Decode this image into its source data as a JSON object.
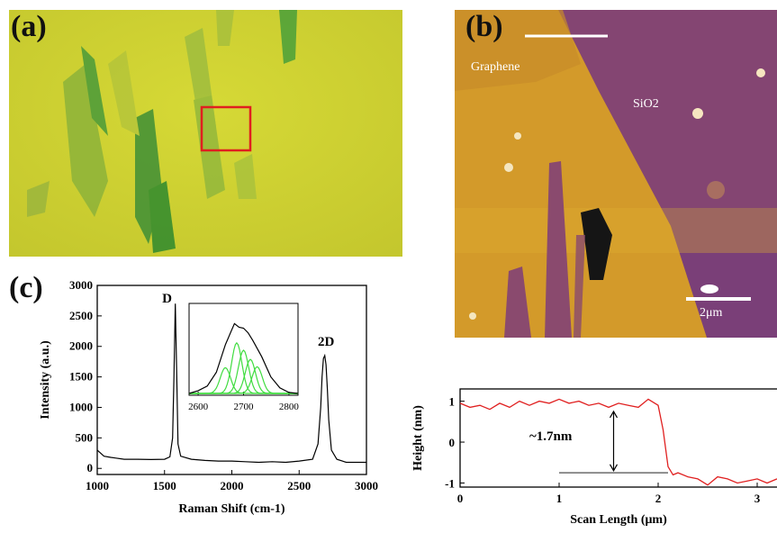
{
  "panel_a": {
    "label": "(a)"
  },
  "panel_b": {
    "label": "(b)",
    "region_labels": [
      "Graphene",
      "SiO2"
    ],
    "scale_bar": "2μm"
  },
  "panel_c": {
    "label": "(c)"
  },
  "chart_data": [
    {
      "type": "line",
      "xlabel": "Raman Shift (cm-1)",
      "ylabel": "Intensity (a.u.)",
      "xlim": [
        1000,
        3000
      ],
      "ylim": [
        -100,
        3000
      ],
      "xticks": [
        "1000",
        "1500",
        "2000",
        "2500",
        "3000"
      ],
      "yticks": [
        "0",
        "500",
        "1000",
        "1500",
        "2000",
        "2500",
        "3000"
      ],
      "annotations": [
        "D",
        "2D"
      ],
      "series": [
        {
          "x": [
            1000,
            1050,
            1100,
            1200,
            1300,
            1400,
            1500,
            1540,
            1560,
            1570,
            1580,
            1590,
            1600,
            1620,
            1700,
            1800,
            1900,
            2000,
            2100,
            2200,
            2300,
            2400,
            2500,
            2600,
            2640,
            2660,
            2670,
            2680,
            2690,
            2700,
            2710,
            2720,
            2740,
            2780,
            2850,
            2950,
            3000
          ],
          "y": [
            300,
            200,
            180,
            150,
            150,
            145,
            150,
            190,
            500,
            1500,
            2700,
            1600,
            400,
            200,
            150,
            130,
            120,
            120,
            110,
            100,
            110,
            100,
            120,
            150,
            400,
            1000,
            1500,
            1800,
            1850,
            1700,
            1300,
            800,
            300,
            150,
            100,
            100,
            100
          ]
        }
      ]
    },
    {
      "type": "line",
      "note": "inset",
      "xlim": [
        2580,
        2820
      ],
      "xticks": [
        "2600",
        "2700",
        "2800"
      ],
      "series": [
        {
          "x": [
            2580,
            2600,
            2620,
            2640,
            2660,
            2680,
            2690,
            2700,
            2710,
            2720,
            2740,
            2760,
            2780,
            2800,
            2820
          ],
          "y": [
            0.02,
            0.05,
            0.1,
            0.25,
            0.55,
            0.78,
            0.74,
            0.73,
            0.68,
            0.6,
            0.42,
            0.2,
            0.08,
            0.03,
            0.02
          ]
        }
      ]
    },
    {
      "type": "line",
      "xlabel": "Scan Length (μm)",
      "ylabel": "Height (nm)",
      "xlim": [
        0,
        3.2
      ],
      "ylim": [
        -1.1,
        1.3
      ],
      "xticks": [
        "0",
        "1",
        "2",
        "3"
      ],
      "yticks": [
        "1",
        "0",
        "-1"
      ],
      "annotations": [
        "~1.7nm"
      ],
      "series": [
        {
          "x": [
            0,
            0.1,
            0.2,
            0.3,
            0.4,
            0.5,
            0.6,
            0.7,
            0.8,
            0.9,
            1.0,
            1.1,
            1.2,
            1.3,
            1.4,
            1.5,
            1.6,
            1.7,
            1.8,
            1.9,
            2.0,
            2.05,
            2.1,
            2.15,
            2.2,
            2.3,
            2.4,
            2.5,
            2.6,
            2.7,
            2.8,
            2.9,
            3.0,
            3.1,
            3.2
          ],
          "y": [
            0.95,
            0.85,
            0.9,
            0.8,
            0.95,
            0.85,
            1.0,
            0.9,
            1.0,
            0.95,
            1.05,
            0.95,
            1.0,
            0.9,
            0.95,
            0.85,
            0.95,
            0.9,
            0.85,
            1.05,
            0.9,
            0.3,
            -0.6,
            -0.8,
            -0.75,
            -0.85,
            -0.9,
            -1.05,
            -0.85,
            -0.9,
            -1.0,
            -0.95,
            -0.9,
            -1.0,
            -0.9
          ]
        }
      ]
    }
  ]
}
